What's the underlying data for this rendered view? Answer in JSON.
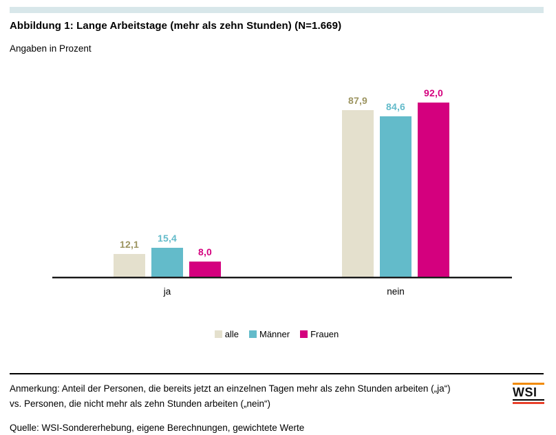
{
  "header": {
    "title": "Abbildung 1: Lange Arbeitstage (mehr als zehn Stunden) (N=1.669)",
    "subtitle": "Angaben in Prozent"
  },
  "chart_data": {
    "type": "bar",
    "title": "Abbildung 1: Lange Arbeitstage (mehr als zehn Stunden) (N=1.669)",
    "units_note": "Angaben in Prozent",
    "categories": [
      "ja",
      "nein"
    ],
    "series": [
      {
        "name": "alle",
        "values": [
          12.1,
          87.9
        ],
        "labels": [
          "12,1",
          "87,9"
        ],
        "color": "#e4e0cd",
        "label_color": "#9c9460"
      },
      {
        "name": "Männer",
        "values": [
          15.4,
          84.6
        ],
        "labels": [
          "15,4",
          "84,6"
        ],
        "color": "#63bbca",
        "label_color": "#63bbca"
      },
      {
        "name": "Frauen",
        "values": [
          8.0,
          92.0
        ],
        "labels": [
          "8,0",
          "92,0"
        ],
        "color": "#d4007e",
        "label_color": "#d4007e"
      }
    ],
    "xlabel": "",
    "ylabel": "",
    "ylim": [
      0,
      100
    ],
    "grid": false,
    "legend_position": "bottom-center",
    "value_label_format": "decimal-comma"
  },
  "footer": {
    "note_line1": "Anmerkung: Anteil der Personen, die bereits jetzt an einzelnen Tagen mehr als zehn Stunden arbeiten („ja“)",
    "note_line2": "vs. Personen, die nicht mehr als zehn Stunden arbeiten („nein“)",
    "source": "Quelle: WSI-Sondererhebung, eigene Berechnungen, gewichtete Werte",
    "logo_text": "WSI"
  },
  "colors": {
    "accent_strip": "#d8e7ea",
    "axis": "#1a1a1a",
    "logo_orange": "#f18a00",
    "logo_red": "#e8402a"
  }
}
